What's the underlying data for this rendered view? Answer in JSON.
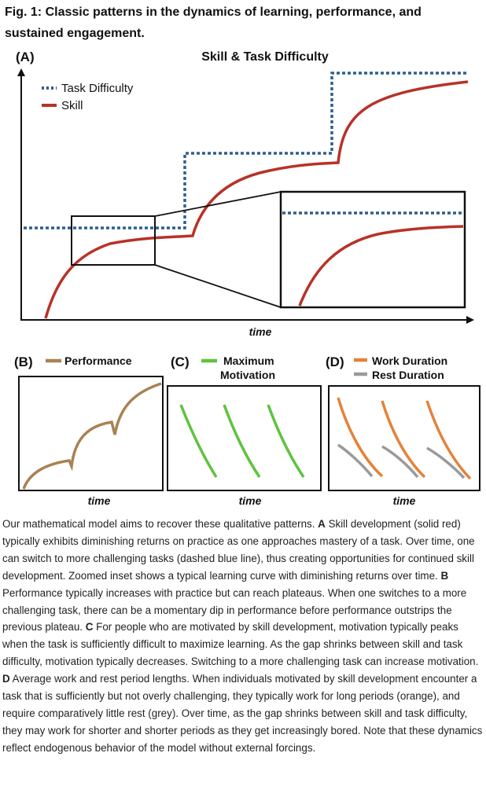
{
  "caption": {
    "fig_label": "Fig. 1:",
    "title": "Classic patterns in the dynamics of learning, performance, and sustained engagement."
  },
  "colors": {
    "skill": "#b83228",
    "task_difficulty": "#2f5f8e",
    "performance": "#a88252",
    "motivation": "#5fc33f",
    "work": "#e4823a",
    "rest": "#9a9a9a"
  },
  "panel_a": {
    "label": "(A)",
    "title": "Skill & Task Difficulty",
    "legend": [
      "Task Difficulty",
      "Skill"
    ],
    "xlabel": "time",
    "inset_note": "Zoomed inset"
  },
  "panel_b": {
    "label": "(B)",
    "legend": [
      "Performance"
    ],
    "xlabel": "time"
  },
  "panel_c": {
    "label": "(C)",
    "legend": [
      "Maximum",
      "Motivation"
    ],
    "xlabel": "time"
  },
  "panel_d": {
    "label": "(D)",
    "legend": [
      "Work Duration",
      "Rest Duration"
    ],
    "xlabel": "time"
  },
  "chart_data": [
    {
      "panel": "A",
      "type": "line",
      "title": "Skill & Task Difficulty",
      "xlabel": "time",
      "ylabel": "",
      "series": [
        {
          "name": "Task Difficulty",
          "style": "dashed",
          "color": "#2f5f8e",
          "x": [
            0,
            0.3,
            0.3,
            0.62,
            0.62,
            0.95
          ],
          "y": [
            0.37,
            0.37,
            0.68,
            0.68,
            1.0,
            1.0
          ]
        },
        {
          "name": "Skill",
          "style": "solid",
          "color": "#b83228",
          "x": [
            0,
            0.1,
            0.2,
            0.3,
            0.4,
            0.5,
            0.62,
            0.72,
            0.85,
            0.95
          ],
          "y": [
            0,
            0.18,
            0.3,
            0.33,
            0.5,
            0.6,
            0.63,
            0.86,
            0.93,
            0.95
          ]
        }
      ]
    },
    {
      "panel": "B",
      "type": "line",
      "xlabel": "time",
      "series": [
        {
          "name": "Performance",
          "color": "#a88252",
          "x": [
            0,
            0.35,
            0.36,
            0.68,
            0.69,
            1.0
          ],
          "y": [
            0,
            0.28,
            0.22,
            0.62,
            0.53,
            1.0
          ]
        }
      ]
    },
    {
      "panel": "C",
      "type": "line",
      "xlabel": "time",
      "series": [
        {
          "name": "Maximum Motivation",
          "color": "#5fc33f",
          "segments": 3
        }
      ]
    },
    {
      "panel": "D",
      "type": "line",
      "xlabel": "time",
      "series": [
        {
          "name": "Work Duration",
          "color": "#e4823a",
          "segments": 3
        },
        {
          "name": "Rest Duration",
          "color": "#9a9a9a",
          "segments": 3
        }
      ]
    }
  ],
  "body": {
    "intro": "Our mathematical model aims to recover these qualitative patterns.",
    "a_label": "A",
    "a_text": "Skill development (solid red) typically exhibits diminishing returns on practice as one approaches mastery of a task. Over time, one can switch to more challenging tasks (dashed blue line), thus creating opportunities for continued skill development. Zoomed inset shows a typical learning curve with diminishing returns over time.",
    "b_label": "B",
    "b_text": "Performance typically increases with practice but can reach plateaus. When one switches to a more challenging task, there can be a momentary dip in performance before performance outstrips the previous plateau.",
    "c_label": "C",
    "c_text": "For people who are motivated by skill development, motivation typically peaks when the task is sufficiently difficult to maximize learning. As the gap shrinks between skill and task difficulty, motivation typically decreases. Switching to a more challenging task can increase motivation.",
    "d_label": "D",
    "d_text": "Average work and rest period lengths. When individuals motivated by skill development encounter a task that is sufficiently but not overly challenging, they typically work for long periods (orange), and require comparatively little rest (grey). Over time, as the gap shrinks between skill and task difficulty, they may work for shorter and shorter periods as they get increasingly bored. Note that these dynamics reflect endogenous behavior of the model without external forcings."
  }
}
